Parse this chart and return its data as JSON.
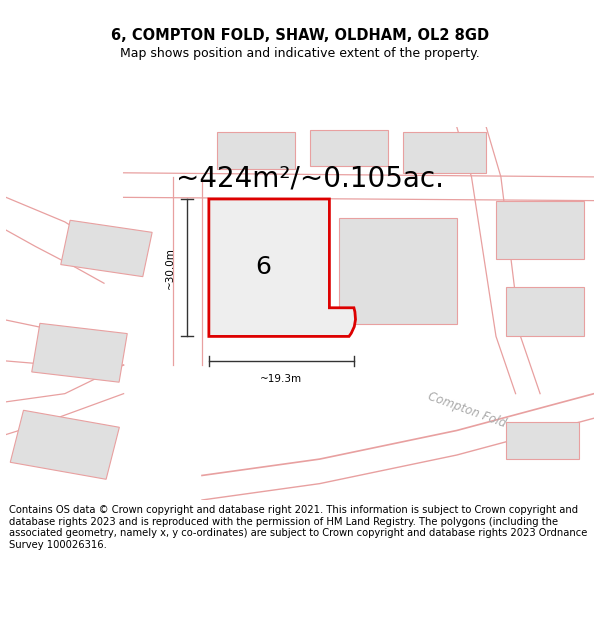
{
  "title": "6, COMPTON FOLD, SHAW, OLDHAM, OL2 8GD",
  "subtitle": "Map shows position and indicative extent of the property.",
  "area_text": "~424m²/~0.105ac.",
  "label_number": "6",
  "dim_width": "~19.3m",
  "dim_height": "~30.0m",
  "road_label": "Compton Fold",
  "footer_text": "Contains OS data © Crown copyright and database right 2021. This information is subject to Crown copyright and database rights 2023 and is reproduced with the permission of HM Land Registry. The polygons (including the associated geometry, namely x, y co-ordinates) are subject to Crown copyright and database rights 2023 Ordnance Survey 100026316.",
  "bg_color": "#ffffff",
  "map_bg": "#ffffff",
  "plot_fill": "#eeeeee",
  "plot_edge": "#dd0000",
  "neighbour_fill": "#e0e0e0",
  "neighbour_edge": "#e8a0a0",
  "road_line_color": "#e8a0a0",
  "dim_line_color": "#333333",
  "title_fontsize": 10.5,
  "subtitle_fontsize": 9,
  "area_fontsize": 20,
  "label_fontsize": 18,
  "footer_fontsize": 7.2
}
